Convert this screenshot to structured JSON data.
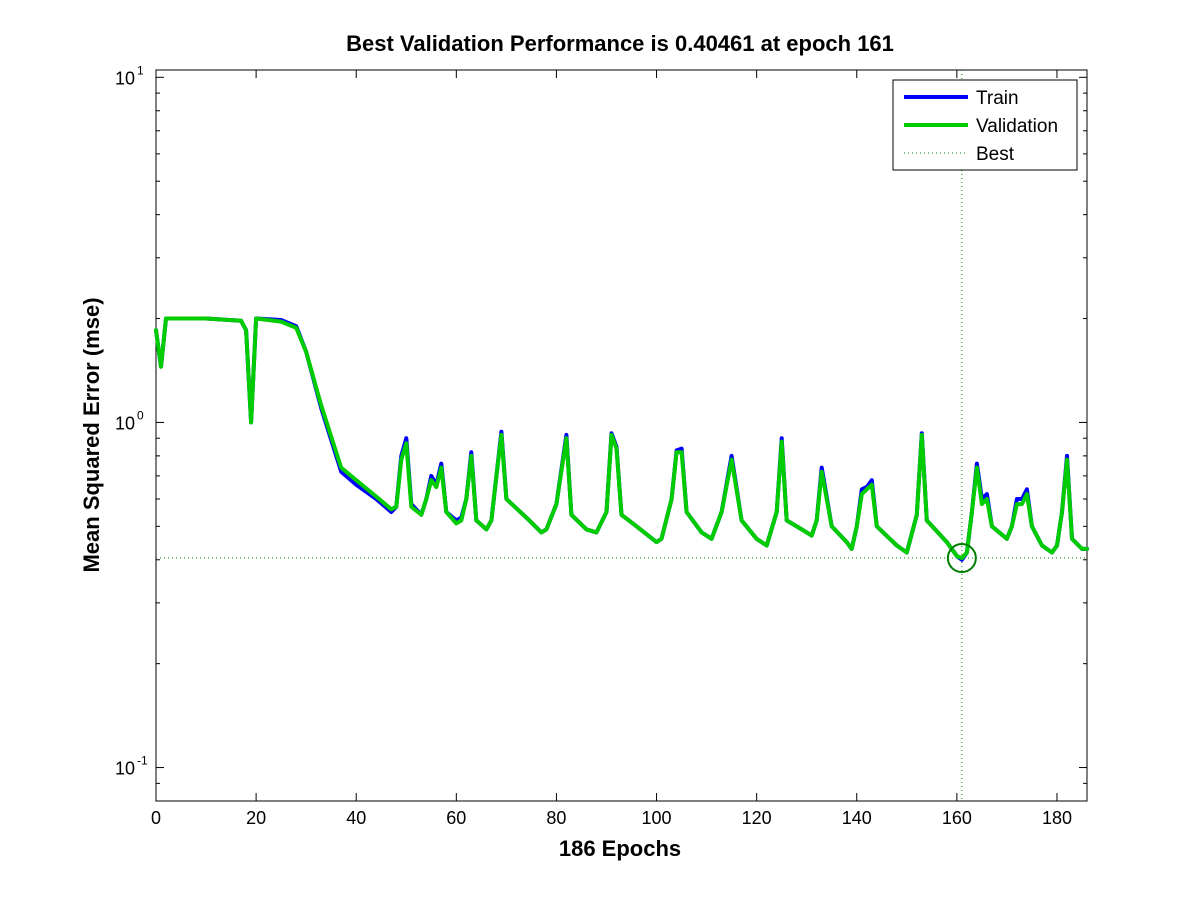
{
  "chart_data": {
    "type": "line",
    "title": "Best Validation Performance is 0.40461 at epoch 161",
    "xlabel": "186 Epochs",
    "ylabel": "Mean Squared Error  (mse)",
    "xlim": [
      0,
      186
    ],
    "ylim": [
      0.08,
      10.5
    ],
    "yscale": "log",
    "xticks": [
      0,
      20,
      40,
      60,
      80,
      100,
      120,
      140,
      160,
      180
    ],
    "xtick_labels": [
      "0",
      "20",
      "40",
      "60",
      "80",
      "100",
      "120",
      "140",
      "160",
      "180"
    ],
    "yticks": [
      {
        "value": 10,
        "base": "10",
        "exp": "1"
      },
      {
        "value": 1,
        "base": "10",
        "exp": "0"
      },
      {
        "value": 0.1,
        "base": "10",
        "exp": "-1"
      }
    ],
    "grid": false,
    "legend": {
      "placement": "top-right",
      "entries": [
        {
          "label": "Train",
          "color": "#0000ff",
          "style": "solid"
        },
        {
          "label": "Validation",
          "color": "#00cc00",
          "style": "solid"
        },
        {
          "label": "Best",
          "color": "#008000",
          "style": "dotted"
        }
      ]
    },
    "best": {
      "epoch": 161,
      "value": 0.40461,
      "color": "#008000"
    },
    "series": [
      {
        "name": "Train",
        "color": "#0000ff",
        "points": [
          [
            0,
            1.85
          ],
          [
            1,
            1.45
          ],
          [
            2,
            2.0
          ],
          [
            10,
            2.0
          ],
          [
            17,
            1.97
          ],
          [
            18,
            1.85
          ],
          [
            19,
            1.0
          ],
          [
            20,
            2.0
          ],
          [
            25,
            1.98
          ],
          [
            28,
            1.9
          ],
          [
            30,
            1.6
          ],
          [
            33,
            1.1
          ],
          [
            36,
            0.8
          ],
          [
            37,
            0.72
          ],
          [
            40,
            0.66
          ],
          [
            44,
            0.6
          ],
          [
            47,
            0.55
          ],
          [
            48,
            0.57
          ],
          [
            49,
            0.8
          ],
          [
            50,
            0.9
          ],
          [
            51,
            0.58
          ],
          [
            53,
            0.54
          ],
          [
            54,
            0.6
          ],
          [
            55,
            0.7
          ],
          [
            56,
            0.66
          ],
          [
            57,
            0.76
          ],
          [
            58,
            0.55
          ],
          [
            60,
            0.52
          ],
          [
            61,
            0.53
          ],
          [
            62,
            0.6
          ],
          [
            63,
            0.82
          ],
          [
            64,
            0.52
          ],
          [
            66,
            0.49
          ],
          [
            67,
            0.52
          ],
          [
            68,
            0.7
          ],
          [
            69,
            0.94
          ],
          [
            70,
            0.6
          ],
          [
            74,
            0.53
          ],
          [
            77,
            0.48
          ],
          [
            78,
            0.49
          ],
          [
            80,
            0.58
          ],
          [
            82,
            0.92
          ],
          [
            83,
            0.54
          ],
          [
            86,
            0.49
          ],
          [
            88,
            0.48
          ],
          [
            90,
            0.55
          ],
          [
            91,
            0.93
          ],
          [
            92,
            0.85
          ],
          [
            93,
            0.54
          ],
          [
            96,
            0.5
          ],
          [
            100,
            0.45
          ],
          [
            101,
            0.46
          ],
          [
            103,
            0.6
          ],
          [
            104,
            0.83
          ],
          [
            105,
            0.84
          ],
          [
            106,
            0.55
          ],
          [
            109,
            0.48
          ],
          [
            111,
            0.46
          ],
          [
            113,
            0.55
          ],
          [
            115,
            0.8
          ],
          [
            117,
            0.52
          ],
          [
            120,
            0.46
          ],
          [
            122,
            0.44
          ],
          [
            124,
            0.55
          ],
          [
            125,
            0.9
          ],
          [
            126,
            0.52
          ],
          [
            129,
            0.49
          ],
          [
            131,
            0.47
          ],
          [
            132,
            0.52
          ],
          [
            133,
            0.74
          ],
          [
            135,
            0.5
          ],
          [
            138,
            0.45
          ],
          [
            139,
            0.43
          ],
          [
            140,
            0.5
          ],
          [
            141,
            0.64
          ],
          [
            142,
            0.65
          ],
          [
            143,
            0.68
          ],
          [
            144,
            0.5
          ],
          [
            148,
            0.44
          ],
          [
            150,
            0.42
          ],
          [
            152,
            0.54
          ],
          [
            153,
            0.93
          ],
          [
            154,
            0.52
          ],
          [
            158,
            0.45
          ],
          [
            160,
            0.41
          ],
          [
            161,
            0.4
          ],
          [
            162,
            0.42
          ],
          [
            163,
            0.55
          ],
          [
            164,
            0.76
          ],
          [
            165,
            0.6
          ],
          [
            166,
            0.62
          ],
          [
            167,
            0.5
          ],
          [
            170,
            0.46
          ],
          [
            171,
            0.5
          ],
          [
            172,
            0.6
          ],
          [
            173,
            0.6
          ],
          [
            174,
            0.64
          ],
          [
            175,
            0.5
          ],
          [
            177,
            0.44
          ],
          [
            179,
            0.42
          ],
          [
            180,
            0.44
          ],
          [
            181,
            0.55
          ],
          [
            182,
            0.8
          ],
          [
            183,
            0.46
          ],
          [
            185,
            0.43
          ],
          [
            186,
            0.43
          ]
        ]
      },
      {
        "name": "Validation",
        "color": "#00cc00",
        "points": [
          [
            0,
            1.85
          ],
          [
            1,
            1.45
          ],
          [
            2,
            2.0
          ],
          [
            10,
            2.0
          ],
          [
            17,
            1.97
          ],
          [
            18,
            1.85
          ],
          [
            19,
            1.0
          ],
          [
            20,
            2.0
          ],
          [
            25,
            1.96
          ],
          [
            28,
            1.88
          ],
          [
            30,
            1.6
          ],
          [
            33,
            1.12
          ],
          [
            36,
            0.82
          ],
          [
            37,
            0.74
          ],
          [
            40,
            0.68
          ],
          [
            44,
            0.61
          ],
          [
            47,
            0.56
          ],
          [
            48,
            0.57
          ],
          [
            49,
            0.78
          ],
          [
            50,
            0.87
          ],
          [
            51,
            0.57
          ],
          [
            53,
            0.54
          ],
          [
            54,
            0.6
          ],
          [
            55,
            0.68
          ],
          [
            56,
            0.65
          ],
          [
            57,
            0.74
          ],
          [
            58,
            0.55
          ],
          [
            60,
            0.51
          ],
          [
            61,
            0.52
          ],
          [
            62,
            0.6
          ],
          [
            63,
            0.8
          ],
          [
            64,
            0.52
          ],
          [
            66,
            0.49
          ],
          [
            67,
            0.52
          ],
          [
            68,
            0.7
          ],
          [
            69,
            0.92
          ],
          [
            70,
            0.6
          ],
          [
            74,
            0.53
          ],
          [
            77,
            0.48
          ],
          [
            78,
            0.49
          ],
          [
            80,
            0.58
          ],
          [
            82,
            0.9
          ],
          [
            83,
            0.54
          ],
          [
            86,
            0.49
          ],
          [
            88,
            0.48
          ],
          [
            90,
            0.55
          ],
          [
            91,
            0.92
          ],
          [
            92,
            0.84
          ],
          [
            93,
            0.54
          ],
          [
            96,
            0.5
          ],
          [
            100,
            0.45
          ],
          [
            101,
            0.46
          ],
          [
            103,
            0.6
          ],
          [
            104,
            0.82
          ],
          [
            105,
            0.82
          ],
          [
            106,
            0.55
          ],
          [
            109,
            0.48
          ],
          [
            111,
            0.46
          ],
          [
            113,
            0.55
          ],
          [
            115,
            0.78
          ],
          [
            117,
            0.52
          ],
          [
            120,
            0.46
          ],
          [
            122,
            0.44
          ],
          [
            124,
            0.55
          ],
          [
            125,
            0.88
          ],
          [
            126,
            0.52
          ],
          [
            129,
            0.49
          ],
          [
            131,
            0.47
          ],
          [
            132,
            0.52
          ],
          [
            133,
            0.72
          ],
          [
            135,
            0.5
          ],
          [
            138,
            0.45
          ],
          [
            139,
            0.43
          ],
          [
            140,
            0.5
          ],
          [
            141,
            0.62
          ],
          [
            142,
            0.64
          ],
          [
            143,
            0.66
          ],
          [
            144,
            0.5
          ],
          [
            148,
            0.44
          ],
          [
            150,
            0.42
          ],
          [
            152,
            0.54
          ],
          [
            153,
            0.92
          ],
          [
            154,
            0.52
          ],
          [
            158,
            0.45
          ],
          [
            160,
            0.41
          ],
          [
            161,
            0.40461
          ],
          [
            162,
            0.42
          ],
          [
            163,
            0.55
          ],
          [
            164,
            0.74
          ],
          [
            165,
            0.58
          ],
          [
            166,
            0.6
          ],
          [
            167,
            0.5
          ],
          [
            170,
            0.46
          ],
          [
            171,
            0.5
          ],
          [
            172,
            0.58
          ],
          [
            173,
            0.58
          ],
          [
            174,
            0.62
          ],
          [
            175,
            0.5
          ],
          [
            177,
            0.44
          ],
          [
            179,
            0.42
          ],
          [
            180,
            0.44
          ],
          [
            181,
            0.55
          ],
          [
            182,
            0.78
          ],
          [
            183,
            0.46
          ],
          [
            185,
            0.43
          ],
          [
            186,
            0.43
          ]
        ]
      }
    ]
  }
}
